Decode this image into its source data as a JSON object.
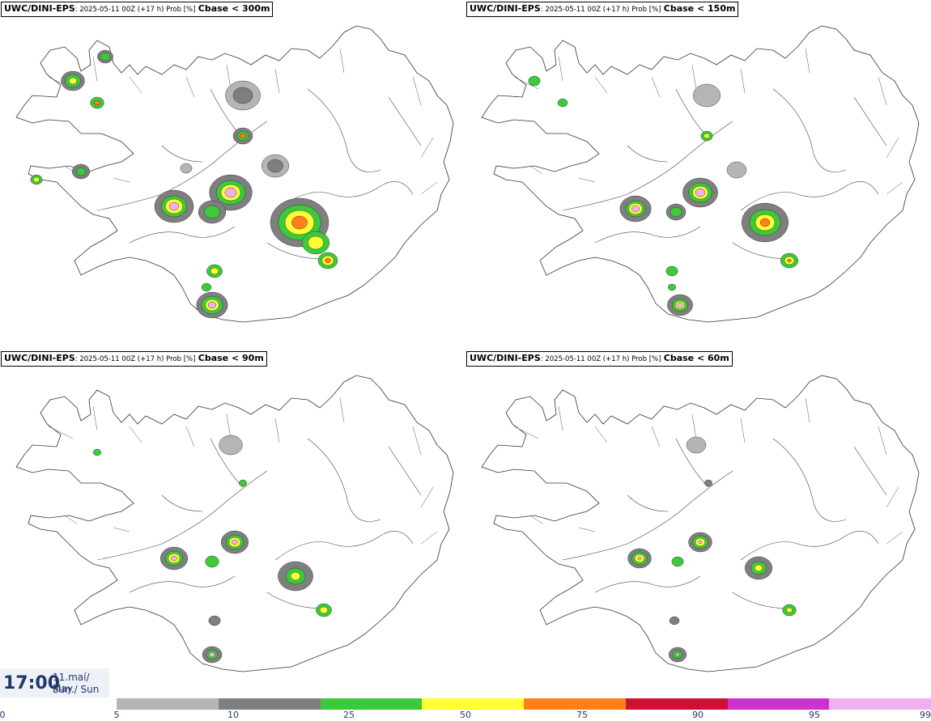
{
  "panels": [
    {
      "model": "UWC/DINI-EPS",
      "meta": ": 2025-05-11 00Z (+17 h) Prob [%]",
      "threshold": "Cbase < 300m"
    },
    {
      "model": "UWC/DINI-EPS",
      "meta": ": 2025-05-11 00Z (+17 h) Prob [%]",
      "threshold": "Cbase < 150m"
    },
    {
      "model": "UWC/DINI-EPS",
      "meta": ": 2025-05-11 00Z (+17 h) Prob [%]",
      "threshold": "Cbase < 90m"
    },
    {
      "model": "UWC/DINI-EPS",
      "meta": ": 2025-05-11 00Z (+17 h) Prob [%]",
      "threshold": "Cbase < 60m"
    }
  ],
  "valid_time": {
    "time": "17:00",
    "date": "11.maí/ May",
    "day": "Sun./ Sun"
  },
  "colorbar": {
    "ticks": [
      "0",
      "5",
      "10",
      "25",
      "50",
      "75",
      "90",
      "95",
      "99"
    ],
    "colors": [
      "#b5b5b5",
      "#7f7f7f",
      "#3cc93c",
      "#ffff33",
      "#ff7f1a",
      "#cc1133",
      "#cc33cc",
      "#f0b0f0"
    ]
  }
}
